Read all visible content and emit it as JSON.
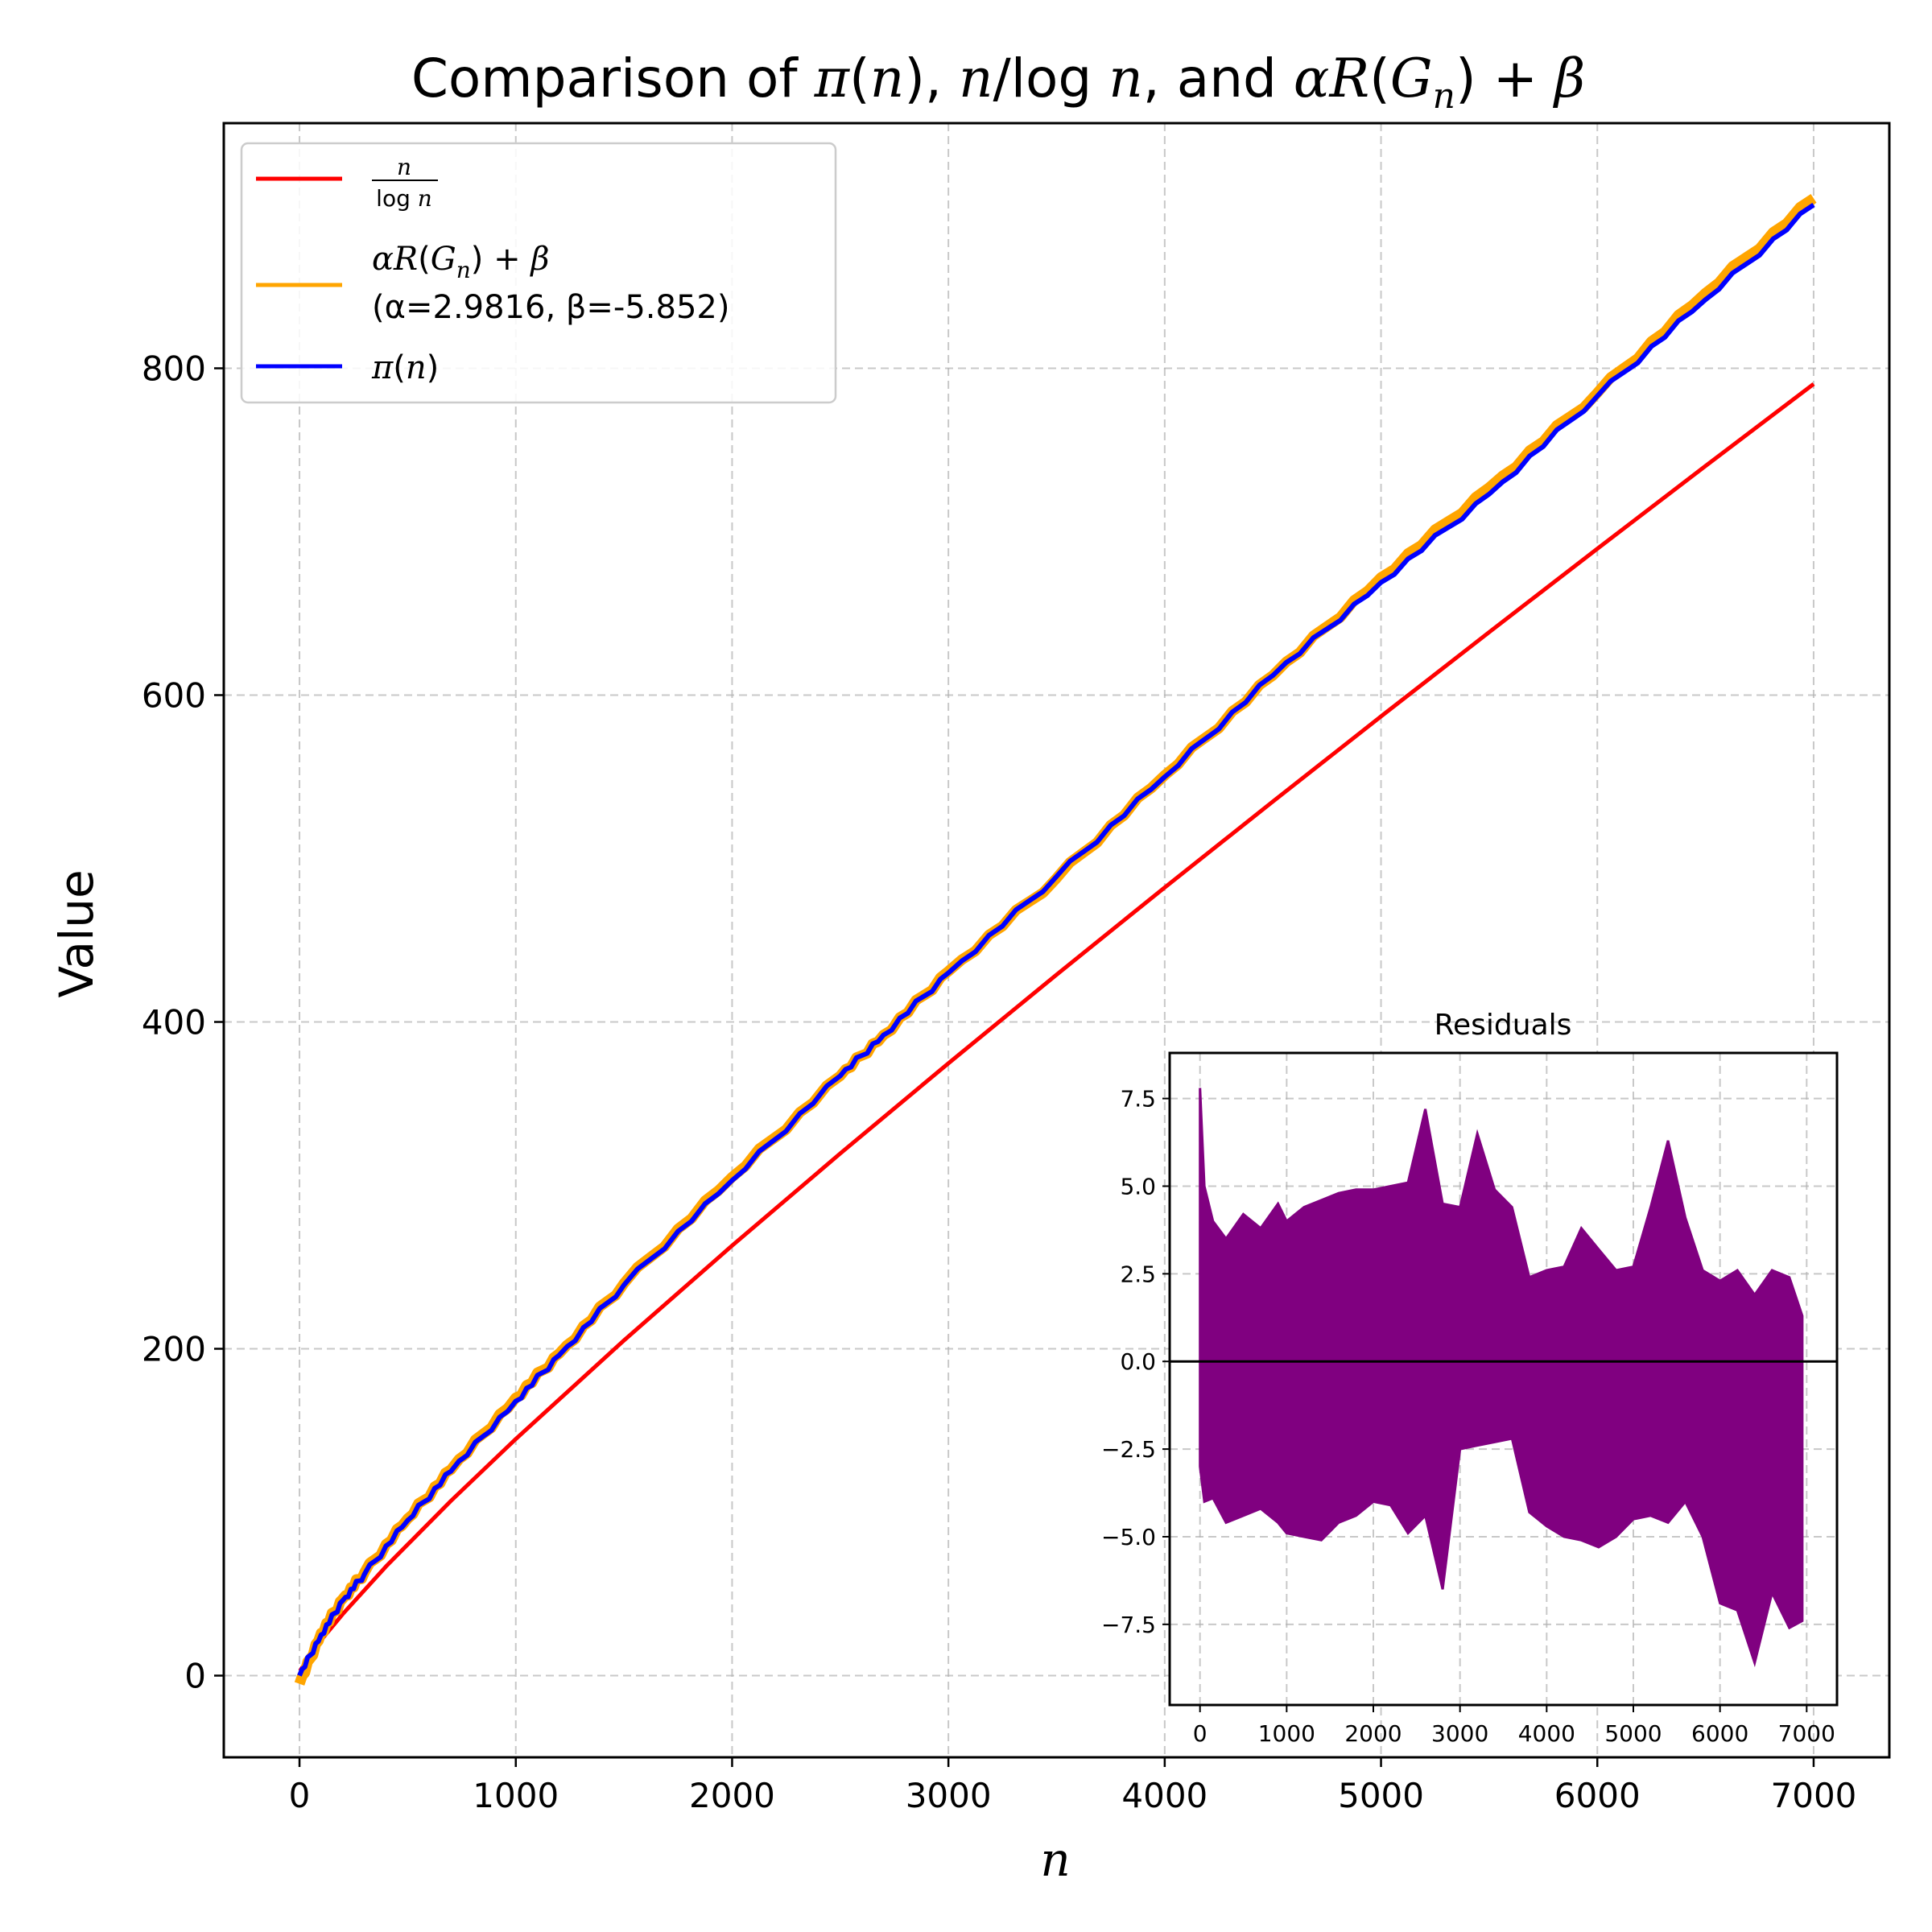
{
  "chart_data": [
    {
      "type": "line",
      "title_parts": [
        "Comparison of ",
        "π",
        "(",
        "n",
        "), ",
        "n",
        "/log ",
        "n",
        ", and ",
        "αR",
        "(",
        "G",
        "n",
        ") + ",
        "β"
      ],
      "xlabel": "n",
      "ylabel": "Value",
      "xlim": [
        -350,
        7350
      ],
      "ylim": [
        -50,
        950
      ],
      "xticks": [
        0,
        1000,
        2000,
        3000,
        4000,
        5000,
        6000,
        7000
      ],
      "yticks": [
        0,
        200,
        400,
        600,
        800
      ],
      "grid": true,
      "legend_position": "upper-left",
      "series": [
        {
          "name": "n / log n",
          "color": "#ff0000",
          "x": [
            2,
            100,
            200,
            400,
            700,
            1000,
            1500,
            2000,
            2500,
            3000,
            3500,
            4000,
            4500,
            5000,
            5500,
            6000,
            6500,
            7000
          ],
          "y": [
            2.9,
            21.7,
            37.7,
            66.8,
            106.9,
            144.8,
            205.1,
            263.1,
            319.5,
            374.7,
            428.9,
            482.3,
            534.9,
            587.0,
            638.5,
            689.6,
            740.2,
            790.4
          ]
        },
        {
          "name": "αR(Gn) + β",
          "name_parts": [
            "αR",
            "(",
            "G",
            "n",
            ") + ",
            "β"
          ],
          "fit_label": "(α=2.9816, β=-5.852)",
          "color": "#ffa500",
          "x": [
            0,
            100,
            200,
            300,
            500,
            700,
            1000,
            1200,
            1500,
            2000,
            2500,
            2700,
            3000,
            3500,
            4000,
            4500,
            5000,
            5500,
            6000,
            6500,
            7000
          ],
          "y": [
            -5,
            26,
            47,
            63,
            96,
            126,
            170,
            197,
            240,
            305,
            367,
            392,
            431,
            488,
            551,
            612,
            672,
            727,
            785,
            846,
            904
          ]
        },
        {
          "name": "π(n)",
          "name_parts": [
            "π",
            "(",
            "n",
            ")"
          ],
          "color": "#0000ff",
          "x": [
            0,
            100,
            200,
            300,
            500,
            700,
            1000,
            1200,
            1500,
            2000,
            2500,
            2700,
            3000,
            3500,
            4000,
            4500,
            5000,
            5500,
            6000,
            6500,
            7000
          ],
          "y": [
            0,
            25,
            46,
            62,
            95,
            125,
            168,
            196,
            239,
            303,
            367,
            392,
            430,
            489,
            550,
            612,
            669,
            723,
            783,
            842,
            900
          ]
        }
      ]
    },
    {
      "type": "line",
      "title": "Residuals",
      "xlim": [
        -350,
        7350
      ],
      "ylim": [
        -9.8,
        8.8
      ],
      "xticks": [
        0,
        1000,
        2000,
        3000,
        4000,
        5000,
        6000,
        7000
      ],
      "yticks": [
        -7.5,
        -5.0,
        -2.5,
        0.0,
        2.5,
        5.0,
        7.5
      ],
      "ytick_labels": [
        "−7.5",
        "−5.0",
        "−2.5",
        "0.0",
        "2.5",
        "5.0",
        "7.5"
      ],
      "grid": true,
      "zero_line": true,
      "color": "#800080",
      "envelope": {
        "x": [
          0,
          50,
          150,
          300,
          500,
          700,
          900,
          1000,
          1200,
          1400,
          1600,
          1800,
          2000,
          2200,
          2400,
          2600,
          2800,
          3000,
          3200,
          3400,
          3600,
          3800,
          4000,
          4200,
          4400,
          4600,
          4800,
          5000,
          5200,
          5400,
          5600,
          5800,
          6000,
          6200,
          6400,
          6600,
          6800,
          6950
        ],
        "upper": [
          7.8,
          5.0,
          4.0,
          3.5,
          4.2,
          3.8,
          4.5,
          4.0,
          4.4,
          4.6,
          4.8,
          4.9,
          4.9,
          5.0,
          5.1,
          7.2,
          4.5,
          4.4,
          6.5,
          4.9,
          4.4,
          2.4,
          2.6,
          2.7,
          3.8,
          3.2,
          2.6,
          2.7,
          4.4,
          6.3,
          4.1,
          2.6,
          2.3,
          2.6,
          1.9,
          2.6,
          2.4,
          1.3
        ],
        "lower": [
          -3.0,
          -4.0,
          -3.9,
          -4.6,
          -4.4,
          -4.2,
          -4.6,
          -4.9,
          -5.0,
          -5.1,
          -4.6,
          -4.4,
          -4.0,
          -4.1,
          -4.9,
          -4.4,
          -6.5,
          -2.5,
          -2.4,
          -2.3,
          -2.2,
          -4.3,
          -4.7,
          -5.0,
          -5.1,
          -5.3,
          -5.0,
          -4.5,
          -4.4,
          -4.6,
          -4.0,
          -5.0,
          -6.9,
          -7.1,
          -8.6,
          -6.6,
          -7.6,
          -7.4
        ]
      }
    }
  ]
}
